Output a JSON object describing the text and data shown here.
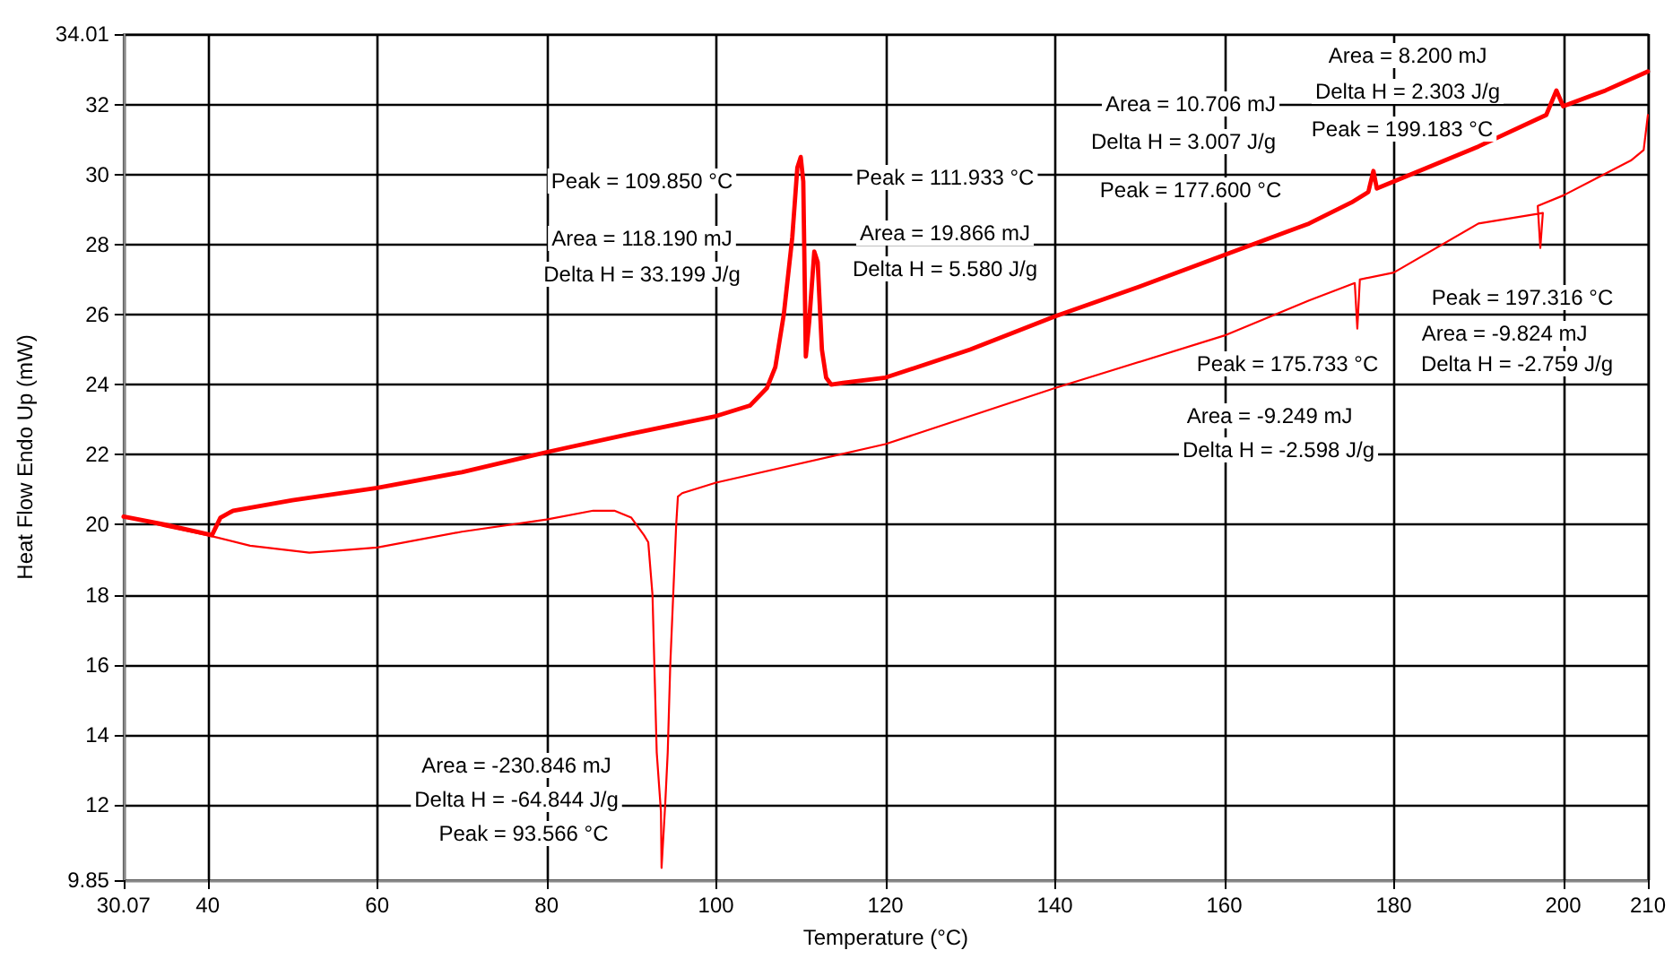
{
  "chart_data": {
    "type": "line",
    "xlabel": "Temperature (°C)",
    "ylabel": "Heat Flow Endo Up (mW)",
    "xlim": [
      30.07,
      210
    ],
    "xticks": [
      30.07,
      40,
      60,
      80,
      100,
      120,
      140,
      160,
      180,
      200,
      210
    ],
    "ylim": [
      9.85,
      34.01
    ],
    "yticks": [
      9.85,
      12,
      14,
      16,
      18,
      20,
      22,
      24,
      26,
      28,
      30,
      32,
      34.01
    ],
    "grid": true,
    "marker": "none",
    "line_style": "solid",
    "series": [
      {
        "color": "#ff0000",
        "x": [
          30.07,
          35,
          40.5,
          41.5,
          43,
          50,
          60,
          70,
          80,
          90,
          100,
          104,
          106,
          107,
          108,
          109,
          109.6,
          110,
          110.3,
          110.6,
          111,
          111.6,
          112,
          112.5,
          113,
          113.6,
          115,
          120,
          130,
          140,
          150,
          160,
          170,
          175,
          177,
          177.6,
          178,
          180,
          190,
          198,
          199.2,
          200,
          205,
          210
        ],
        "values": [
          20.23,
          20.0,
          19.7,
          20.2,
          20.4,
          20.7,
          21.05,
          21.5,
          22.07,
          22.6,
          23.1,
          23.4,
          23.9,
          24.5,
          26.0,
          28.2,
          30.2,
          30.5,
          29.8,
          24.8,
          25.8,
          27.8,
          27.5,
          25.0,
          24.2,
          24.0,
          24.05,
          24.2,
          25.0,
          25.95,
          26.8,
          27.7,
          28.6,
          29.2,
          29.5,
          30.1,
          29.6,
          29.8,
          30.8,
          31.7,
          32.4,
          31.95,
          32.4,
          32.94
        ]
      },
      {
        "color": "#ff0000",
        "x": [
          210,
          209.5,
          208,
          200,
          197,
          197.3,
          197.6,
          190,
          180,
          176,
          175.7,
          175.4,
          170,
          160,
          140,
          120,
          100,
          96,
          95.5,
          95.3,
          95,
          94.6,
          94.3,
          94,
          93.57,
          93.5,
          93,
          92.5,
          92,
          91.5,
          90,
          88,
          85.5,
          80,
          70,
          60,
          55,
          52,
          45,
          40,
          35,
          30.07
        ],
        "values": [
          31.7,
          30.7,
          30.4,
          29.4,
          29.1,
          27.9,
          28.9,
          28.6,
          27.2,
          27.0,
          25.6,
          26.9,
          26.4,
          25.4,
          23.9,
          22.3,
          21.2,
          20.9,
          20.8,
          20.0,
          18.3,
          16.0,
          13.5,
          12.0,
          10.2,
          11.8,
          13.5,
          18.0,
          19.5,
          19.7,
          20.2,
          20.4,
          20.4,
          20.15,
          19.8,
          19.35,
          19.25,
          19.2,
          19.4,
          19.7,
          19.95,
          20.25
        ]
      }
    ],
    "annotations": [
      "Peak = 109.850 °C",
      "Area = 118.190 mJ",
      "Delta H = 33.199 J/g",
      "Peak = 111.933 °C",
      "Area = 19.866 mJ",
      "Delta H = 5.580 J/g",
      "Area = 10.706 mJ",
      "Delta H = 3.007 J/g",
      "Peak = 177.600 °C",
      "Area = 8.200 mJ",
      "Delta H = 2.303 J/g",
      "Peak = 199.183 °C",
      "Peak = 197.316 °C",
      "Area = -9.824 mJ",
      "Delta H = -2.759 J/g",
      "Peak = 175.733 °C",
      "Area = -9.249 mJ",
      "Delta H = -2.598 J/g",
      "Area = -230.846 mJ",
      "Delta H = -64.844 J/g",
      "Peak = 93.566 °C"
    ]
  }
}
